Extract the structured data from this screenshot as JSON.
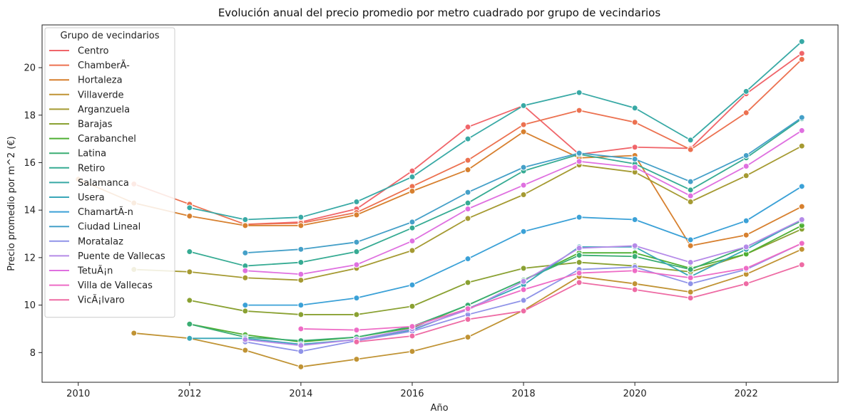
{
  "chart_data": {
    "type": "line",
    "title": "Evolución anual del precio promedio por metro cuadrado por grupo de vecindarios",
    "xlabel": "Año",
    "ylabel": "Precio promedio por m^2 (€)",
    "xlim": [
      2009.35,
      2023.65
    ],
    "ylim": [
      6.75,
      21.8
    ],
    "x_ticks": [
      2010,
      2012,
      2014,
      2016,
      2018,
      2020,
      2022
    ],
    "y_ticks": [
      8,
      10,
      12,
      14,
      16,
      18,
      20
    ],
    "grid": false,
    "markers": true,
    "legend": {
      "title": "Grupo de vecindarios",
      "placement": "top-left"
    },
    "series": [
      {
        "name": "Centro",
        "color": "#f0656a",
        "points": [
          [
            2013,
            13.4
          ],
          [
            2014,
            13.5
          ],
          [
            2015,
            14.05
          ],
          [
            2016,
            15.65
          ],
          [
            2017,
            17.5
          ],
          [
            2018,
            18.4
          ],
          [
            2019,
            16.35
          ],
          [
            2020,
            16.65
          ],
          [
            2021,
            16.6
          ],
          [
            2022,
            18.9
          ],
          [
            2023,
            20.6
          ]
        ]
      },
      {
        "name": "ChamberÃ-",
        "color": "#ec7150",
        "points": [
          [
            2011,
            15.1
          ],
          [
            2012,
            14.25
          ],
          [
            2013,
            13.4
          ],
          [
            2014,
            13.45
          ],
          [
            2015,
            13.9
          ],
          [
            2016,
            15.0
          ],
          [
            2017,
            16.1
          ],
          [
            2018,
            17.6
          ],
          [
            2019,
            18.2
          ],
          [
            2020,
            17.7
          ],
          [
            2021,
            16.55
          ],
          [
            2022,
            18.1
          ],
          [
            2023,
            20.35
          ]
        ]
      },
      {
        "name": "Hortaleza",
        "color": "#d7802f",
        "points": [
          [
            2010,
            15.3
          ],
          [
            2011,
            14.3
          ],
          [
            2012,
            13.75
          ],
          [
            2013,
            13.35
          ],
          [
            2014,
            13.35
          ],
          [
            2015,
            13.8
          ],
          [
            2016,
            14.8
          ],
          [
            2017,
            15.7
          ],
          [
            2018,
            17.3
          ],
          [
            2019,
            16.2
          ],
          [
            2020,
            16.3
          ],
          [
            2021,
            12.5
          ],
          [
            2022,
            12.95
          ],
          [
            2023,
            14.15
          ]
        ]
      },
      {
        "name": "Villaverde",
        "color": "#c09334",
        "points": [
          [
            2011,
            8.82
          ],
          [
            2012,
            8.6
          ],
          [
            2013,
            8.1
          ],
          [
            2014,
            7.4
          ],
          [
            2015,
            7.72
          ],
          [
            2016,
            8.05
          ],
          [
            2017,
            8.65
          ],
          [
            2018,
            9.78
          ],
          [
            2019,
            11.2
          ],
          [
            2020,
            10.9
          ],
          [
            2021,
            10.55
          ],
          [
            2022,
            11.3
          ],
          [
            2023,
            12.35
          ]
        ]
      },
      {
        "name": "Arganzuela",
        "color": "#a59a32",
        "points": [
          [
            2011,
            11.5
          ],
          [
            2012,
            11.4
          ],
          [
            2013,
            11.15
          ],
          [
            2014,
            11.05
          ],
          [
            2015,
            11.55
          ],
          [
            2016,
            12.3
          ],
          [
            2017,
            13.65
          ],
          [
            2018,
            14.65
          ],
          [
            2019,
            15.9
          ],
          [
            2020,
            15.6
          ],
          [
            2021,
            14.35
          ],
          [
            2022,
            15.45
          ],
          [
            2023,
            16.7
          ]
        ]
      },
      {
        "name": "Barajas",
        "color": "#8aa132",
        "points": [
          [
            2012,
            10.2
          ],
          [
            2013,
            9.75
          ],
          [
            2014,
            9.6
          ],
          [
            2015,
            9.6
          ],
          [
            2016,
            9.95
          ],
          [
            2017,
            10.95
          ],
          [
            2018,
            11.55
          ],
          [
            2019,
            11.8
          ],
          [
            2020,
            11.65
          ],
          [
            2021,
            11.4
          ],
          [
            2022,
            12.15
          ],
          [
            2023,
            13.2
          ]
        ]
      },
      {
        "name": "Carabanchel",
        "color": "#4faf33",
        "points": [
          [
            2012,
            9.2
          ],
          [
            2013,
            8.75
          ],
          [
            2014,
            8.45
          ],
          [
            2015,
            8.65
          ],
          [
            2016,
            9.05
          ],
          [
            2017,
            10.0
          ],
          [
            2018,
            11.05
          ],
          [
            2019,
            12.2
          ],
          [
            2020,
            12.2
          ],
          [
            2021,
            11.55
          ],
          [
            2022,
            12.15
          ],
          [
            2023,
            13.35
          ]
        ]
      },
      {
        "name": "Latina",
        "color": "#3aad72",
        "points": [
          [
            2012,
            9.2
          ],
          [
            2013,
            8.65
          ],
          [
            2014,
            8.5
          ],
          [
            2015,
            8.65
          ],
          [
            2016,
            9.1
          ],
          [
            2017,
            10.0
          ],
          [
            2018,
            11.05
          ],
          [
            2019,
            12.1
          ],
          [
            2020,
            12.05
          ],
          [
            2021,
            11.5
          ],
          [
            2022,
            12.45
          ],
          [
            2023,
            13.55
          ]
        ]
      },
      {
        "name": "Retiro",
        "color": "#36ab93",
        "points": [
          [
            2012,
            12.25
          ],
          [
            2013,
            11.65
          ],
          [
            2014,
            11.8
          ],
          [
            2015,
            12.25
          ],
          [
            2016,
            13.25
          ],
          [
            2017,
            14.3
          ],
          [
            2018,
            15.65
          ],
          [
            2019,
            16.35
          ],
          [
            2020,
            15.95
          ],
          [
            2021,
            14.85
          ],
          [
            2022,
            16.2
          ],
          [
            2023,
            17.85
          ]
        ]
      },
      {
        "name": "Salamanca",
        "color": "#38a9a5",
        "points": [
          [
            2012,
            14.1
          ],
          [
            2013,
            13.6
          ],
          [
            2014,
            13.7
          ],
          [
            2015,
            14.35
          ],
          [
            2016,
            15.4
          ],
          [
            2017,
            17.0
          ],
          [
            2018,
            18.4
          ],
          [
            2019,
            18.95
          ],
          [
            2020,
            18.3
          ],
          [
            2021,
            16.95
          ],
          [
            2022,
            19.0
          ],
          [
            2023,
            21.1
          ]
        ]
      },
      {
        "name": "Usera",
        "color": "#39a7b8",
        "points": [
          [
            2012,
            8.6
          ],
          [
            2013,
            8.6
          ],
          [
            2014,
            8.35
          ],
          [
            2015,
            8.55
          ],
          [
            2016,
            8.95
          ],
          [
            2017,
            9.85
          ],
          [
            2018,
            10.85
          ],
          [
            2019,
            12.45
          ],
          [
            2020,
            12.45
          ],
          [
            2021,
            11.2
          ],
          [
            2022,
            12.35
          ],
          [
            2023,
            13.6
          ]
        ]
      },
      {
        "name": "ChamartÃ-n",
        "color": "#3ba1d7",
        "points": [
          [
            2013,
            10.0
          ],
          [
            2014,
            10.0
          ],
          [
            2015,
            10.3
          ],
          [
            2016,
            10.85
          ],
          [
            2017,
            11.95
          ],
          [
            2018,
            13.1
          ],
          [
            2019,
            13.7
          ],
          [
            2020,
            13.6
          ],
          [
            2021,
            12.75
          ],
          [
            2022,
            13.55
          ],
          [
            2023,
            15.0
          ]
        ]
      },
      {
        "name": "Ciudad Lineal",
        "color": "#45a0c8",
        "points": [
          [
            2013,
            12.2
          ],
          [
            2014,
            12.35
          ],
          [
            2015,
            12.65
          ],
          [
            2016,
            13.5
          ],
          [
            2017,
            14.75
          ],
          [
            2018,
            15.8
          ],
          [
            2019,
            16.4
          ],
          [
            2020,
            16.15
          ],
          [
            2021,
            15.2
          ],
          [
            2022,
            16.3
          ],
          [
            2023,
            17.9
          ]
        ]
      },
      {
        "name": "Moratalaz",
        "color": "#8f93e8",
        "points": [
          [
            2013,
            8.45
          ],
          [
            2014,
            8.05
          ],
          [
            2015,
            8.5
          ],
          [
            2016,
            8.9
          ],
          [
            2017,
            9.6
          ],
          [
            2018,
            10.2
          ],
          [
            2019,
            11.5
          ],
          [
            2020,
            11.6
          ],
          [
            2021,
            10.9
          ],
          [
            2022,
            11.5
          ],
          [
            2023,
            12.6
          ]
        ]
      },
      {
        "name": "Puente de Vallecas",
        "color": "#b58ae8",
        "points": [
          [
            2013,
            8.55
          ],
          [
            2014,
            8.3
          ],
          [
            2015,
            8.55
          ],
          [
            2016,
            9.0
          ],
          [
            2017,
            9.8
          ],
          [
            2018,
            11.0
          ],
          [
            2019,
            12.4
          ],
          [
            2020,
            12.5
          ],
          [
            2021,
            11.8
          ],
          [
            2022,
            12.45
          ],
          [
            2023,
            13.6
          ]
        ]
      },
      {
        "name": "TetuÃ¡n",
        "color": "#df70e0",
        "points": [
          [
            2013,
            11.45
          ],
          [
            2014,
            11.3
          ],
          [
            2015,
            11.7
          ],
          [
            2016,
            12.7
          ],
          [
            2017,
            14.05
          ],
          [
            2018,
            15.05
          ],
          [
            2019,
            16.05
          ],
          [
            2020,
            15.8
          ],
          [
            2021,
            14.6
          ],
          [
            2022,
            15.85
          ],
          [
            2023,
            17.35
          ]
        ]
      },
      {
        "name": "Villa de Vallecas",
        "color": "#ee6cc6",
        "points": [
          [
            2014,
            9.0
          ],
          [
            2015,
            8.95
          ],
          [
            2016,
            9.1
          ],
          [
            2017,
            9.85
          ],
          [
            2018,
            10.65
          ],
          [
            2019,
            11.35
          ],
          [
            2020,
            11.45
          ],
          [
            2021,
            11.15
          ],
          [
            2022,
            11.55
          ],
          [
            2023,
            12.6
          ]
        ]
      },
      {
        "name": "VicÃ¡lvaro",
        "color": "#ee6ba4",
        "points": [
          [
            2015,
            8.45
          ],
          [
            2016,
            8.7
          ],
          [
            2017,
            9.4
          ],
          [
            2018,
            9.75
          ],
          [
            2019,
            10.95
          ],
          [
            2020,
            10.65
          ],
          [
            2021,
            10.3
          ],
          [
            2022,
            10.9
          ],
          [
            2023,
            11.7
          ]
        ]
      }
    ]
  }
}
